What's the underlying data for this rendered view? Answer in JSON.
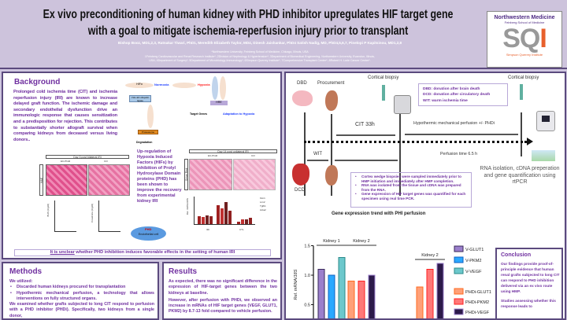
{
  "header": {
    "title_line1": "Ex vivo preconditioning of human kidney with PHD inhibitor upregulates HIF target gene",
    "title_line2": "with a goal to mitigate ischemia-reperfusion injury prior to transplant",
    "authors": "Bishop Booz, MD1,2,3, Ratnakar Tiwari, PhD1, Meredith Elizabeth Taylor, MD4, Dinesh Jaishankar, PhD4 Satish Nadig, MD, PhD4,5,6,7, Pinelopi P Kapitsinou, MD1,2,8",
    "aff1": "*Northwestern University, Feinberg School of Medicine, Chicago, Illinois, USA",
    "aff2": "1Feinberg Cardiovascular and Renal Research Institute*; 2Division of Nephrology & Hypertension*; 3Department of Biomedical Engineering, Northwestern University, Evanston, Illinois,",
    "aff3": "USA; 4Department of Surgery*; 5Department of Microbiology-Immunology*; 6Simpson Querrey Institute*; 7Comprehensive Transplant Center*; 8Robert H. Lurie Cancer Center*.",
    "logo": {
      "org": "Northwestern Medicine",
      "school": "Feinberg School of Medicine",
      "mark": "SQI",
      "institute": "Simpson Querrey Institute"
    }
  },
  "background": {
    "heading": "Background",
    "text": "Prolonged cold ischemia time (CIT) and ischemia reperfusion injury (IRI) are known to increase delayed graft function. The ischemic damage and secondary endothelial dysfunction drive an immunologic response that causes sensitization and a predisposition for rejection. This contributes to substantially shorter allograft survival when comparing kidneys from deceased versus living donors..",
    "pathway": {
      "normoxia": "Normoxia",
      "hypoxia": "Hypoxia",
      "hif": "HIFα",
      "vhl": "VHL-E3 ubiquitin ligase",
      "proteasome": "Proteasome",
      "degradation": "Degradation",
      "hre": "HRE",
      "target_genes": "Target Genes",
      "adaptation": "Adaptation to Hypoxia"
    },
    "fig1": {
      "title": "Day 3 post bilateral IRI",
      "col1": "EC-Phd2",
      "col2": "Ctrl",
      "row": "H&E",
      "ylabel1": "BUN (mg/dl)",
      "ylabel2": "Creatinine (mg/dl)"
    },
    "fig2": {
      "title": "Day 14 post unilateral IRI",
      "col1": "EC-Phd2",
      "col2": "Ctrl",
      "row": "Sirius Red",
      "ylabel": "Rel. mRNA/18S",
      "legend": [
        "Kim1",
        "Lcn2",
        "Tgfb1",
        "Acta2"
      ],
      "groups": [
        "IRI",
        "CTL"
      ]
    },
    "callout": "Up-regulation of Hypoxia Induced Factors (HIFs) by inhibition of Prolyl Hydroxylase Domain proteins (PHD) has been shown to improve the recovery from experimental kidney IRI",
    "cell_label": "Endothelial cell",
    "cell_marker": "PHD",
    "unclear_em": "It is unclear",
    "unclear_rest": " whether PHD inhibition induces favorable effects in the setting of human IRI"
  },
  "methods": {
    "heading": "Methods",
    "intro": "We utilized:",
    "bullets": [
      "Discarded human kidneys procured for transplantation",
      "Hypothermic mechanical perfusion, a technology that allows interventions on fully structured organs."
    ],
    "text": "We examined whether grafts subjected to long CIT respond to perfusion with a PHD inhibitor (PHDi). Specifically, two kidneys from a single donor,"
  },
  "results": {
    "heading": "Results",
    "p1": "As expected, there was no significant difference in the expression of HIF-target genes between the two kidneys at baseline.",
    "p2": "However, after perfusion with PHDi, we observed an increase in mRNAs of HIF target genes (VEGF, GLUT1, PKM2) by 8.7-13 fold compared to vehicle perfusion."
  },
  "timeline": {
    "dbd": "DBD",
    "procurement": "Procurement",
    "biopsy1": "Cortical biopsy",
    "biopsy2": "Cortical biopsy",
    "cit": "CIT 33h",
    "hmp": "Hypothermic mechanical perfusion +/- PHDi",
    "wit": "WIT",
    "perfusion_time": "Perfusion time 6.5 h",
    "dcd": "DCD",
    "defs": [
      "DBD: donation after brain death",
      "DCD: donation after circulatory death",
      "WIT: warm ischemia time"
    ],
    "rna": "RNA isolation, cDNA preperation and gene quantification using rtPCR",
    "notes": [
      "Cortex wedge biopsies were sampled immediately prior to HMP initiation and immediately after HMP completion.",
      "RNA was isolated from the tissue and cDNA was prepared from the RNA.",
      "Gene expression of HIF target genes was quantified for each specimen using real time PCR."
    ]
  },
  "chart_data": {
    "type": "bar",
    "title": "Gene expression trend with PHI perfusion",
    "ylabel": "Rel. mRNA/18S",
    "ylim": [
      0,
      1.5
    ],
    "yticks": [
      "1.5",
      "1.0",
      "0.5"
    ],
    "ytick_values": [
      1.5,
      1.0,
      0.5
    ],
    "groups": [
      {
        "label": "Kidney 1",
        "bars": [
          {
            "name": "V-GLUT1",
            "value": 1.1
          },
          {
            "name": "V-PKM2",
            "value": 1.0
          },
          {
            "name": "V-VEGF",
            "value": 1.3
          }
        ]
      },
      {
        "label": "Kidney 2",
        "bars": [
          {
            "name": "PHDi-GLUT1",
            "value": 0.9
          },
          {
            "name": "PHDi-PKM2",
            "value": 0.9
          },
          {
            "name": "PHDi-VEGF",
            "value": 1.0
          }
        ]
      },
      {
        "label": "Kidney 2",
        "bars": [
          {
            "name": "PHDi-GLUT1",
            "value": 0.8
          },
          {
            "name": "PHDi-PKM2",
            "value": 1.1
          },
          {
            "name": "PHDi-VEGF",
            "value": 1.2
          }
        ]
      }
    ],
    "legend": [
      {
        "name": "V-GLUT1",
        "color": "#9b7fcc",
        "edge": "#3a2a5a"
      },
      {
        "name": "V-PKM2",
        "color": "#2aa8ff",
        "edge": "#1060c0"
      },
      {
        "name": "V-VEGF",
        "color": "#6cc8cc",
        "edge": "#2a8a8a"
      },
      {
        "name": "PHDi-GLUT1",
        "color": "#ffa078",
        "edge": "#ff6a20"
      },
      {
        "name": "PHDi-PKM2",
        "color": "#ff7878",
        "edge": "#ff2020"
      },
      {
        "name": "PHDi-VEGF",
        "color": "#2c1a4a",
        "edge": "#9b7fcc"
      }
    ],
    "legend_placement": "right"
  },
  "conclusion": {
    "heading": "Conclusion",
    "p1": "Our findings provide proof-of-principle evidence that human renal grafts subjected to long CIT can respond to PHD inhibition delivered via an ex vivo route using HMP.",
    "p2": "Studies assessing whether this response leads to"
  }
}
